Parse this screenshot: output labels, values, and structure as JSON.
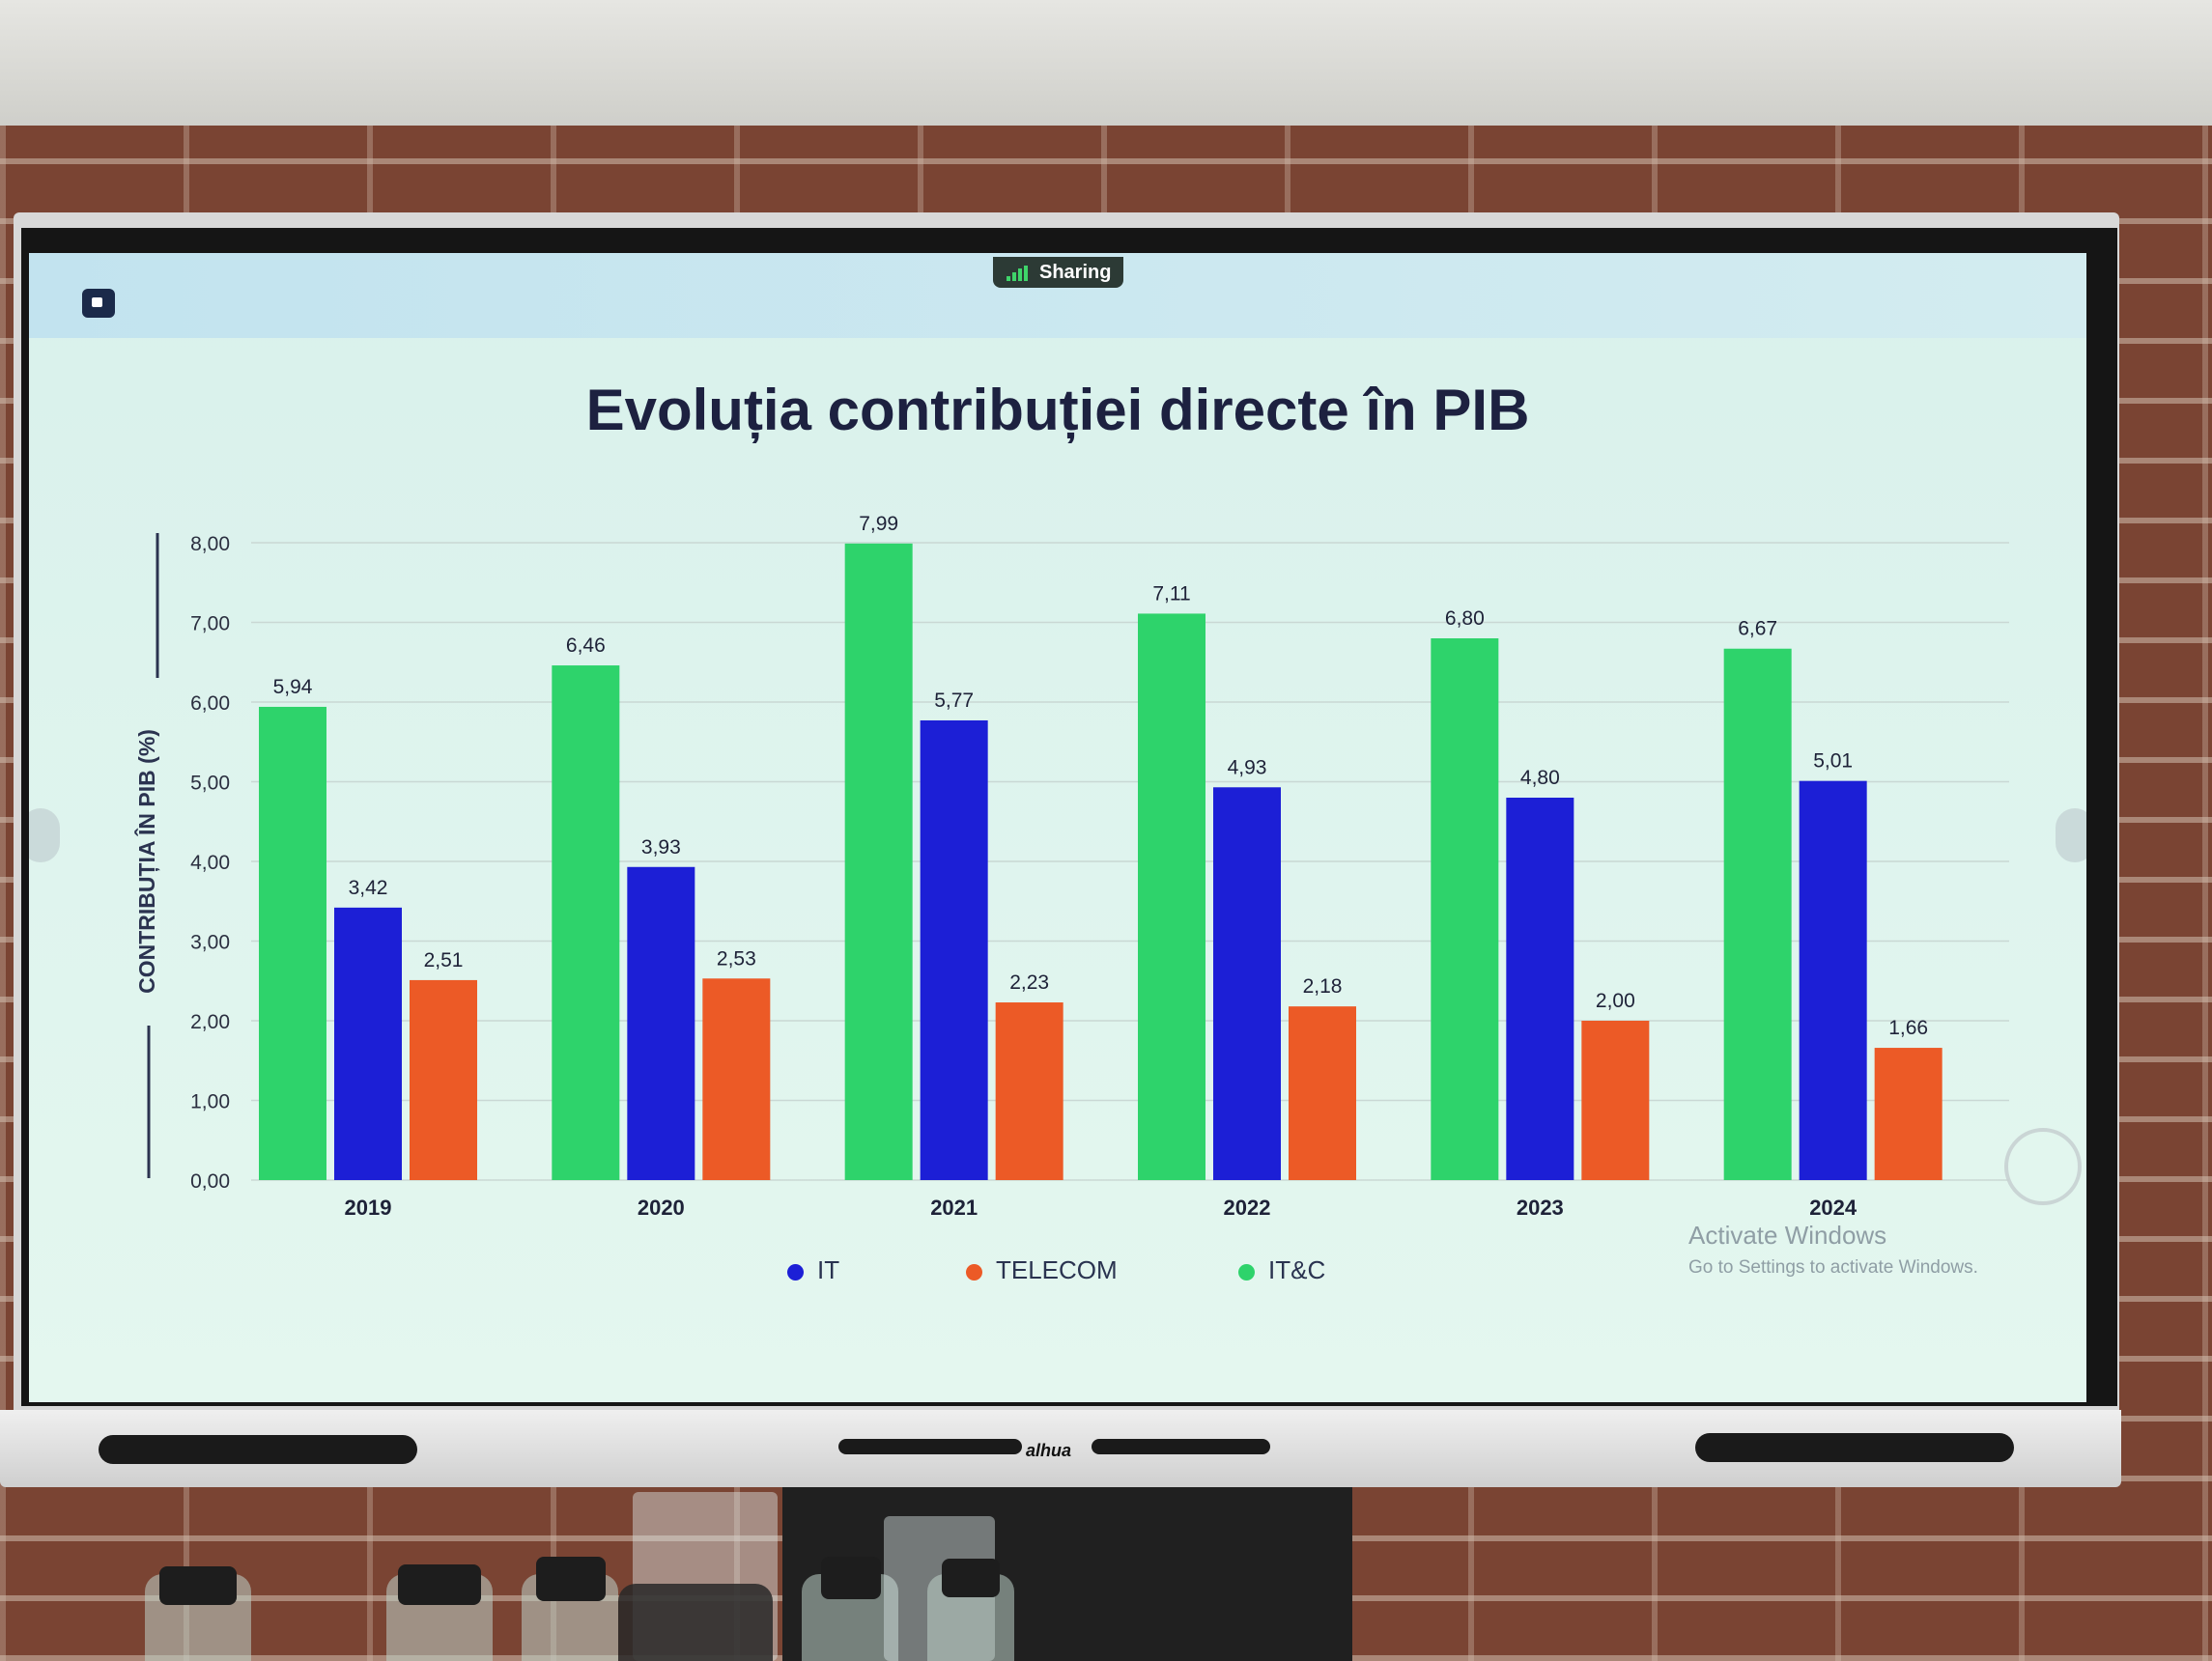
{
  "screen": {
    "sharing_label": "Sharing",
    "watermark_title": "Activate Windows",
    "watermark_sub": "Go to Settings to activate Windows.",
    "tv_brand": "alhua"
  },
  "chart_data": {
    "type": "bar",
    "title": "Evoluția contribuției directe în PIB",
    "ylabel": "CONTRIBUȚIA ÎN PIB (%)",
    "xlabel": "",
    "ylim": [
      0,
      8
    ],
    "yticks": [
      "0,00",
      "1,00",
      "2,00",
      "3,00",
      "4,00",
      "5,00",
      "6,00",
      "7,00",
      "8,00"
    ],
    "categories": [
      "2019",
      "2020",
      "2021",
      "2022",
      "2023",
      "2024"
    ],
    "series": [
      {
        "name": "IT&C",
        "color": "#2ed36b",
        "values": [
          5.94,
          6.46,
          7.99,
          7.11,
          6.8,
          6.67
        ],
        "labels": [
          "5,94",
          "6,46",
          "7,99",
          "7,11",
          "6,80",
          "6,67"
        ]
      },
      {
        "name": "IT",
        "color": "#1c1fd6",
        "values": [
          3.42,
          3.93,
          5.77,
          4.93,
          4.8,
          5.01
        ],
        "labels": [
          "3,42",
          "3,93",
          "5,77",
          "4,93",
          "4,80",
          "5,01"
        ]
      },
      {
        "name": "TELECOM",
        "color": "#ec5a26",
        "values": [
          2.51,
          2.53,
          2.23,
          2.18,
          2.0,
          1.66
        ],
        "labels": [
          "2,51",
          "2,53",
          "2,23",
          "2,18",
          "2,00",
          "1,66"
        ]
      }
    ],
    "legend": [
      {
        "name": "IT",
        "color": "#1c1fd6"
      },
      {
        "name": "TELECOM",
        "color": "#ec5a26"
      },
      {
        "name": "IT&C",
        "color": "#2ed36b"
      }
    ],
    "legend_position": "bottom",
    "grid": true
  }
}
